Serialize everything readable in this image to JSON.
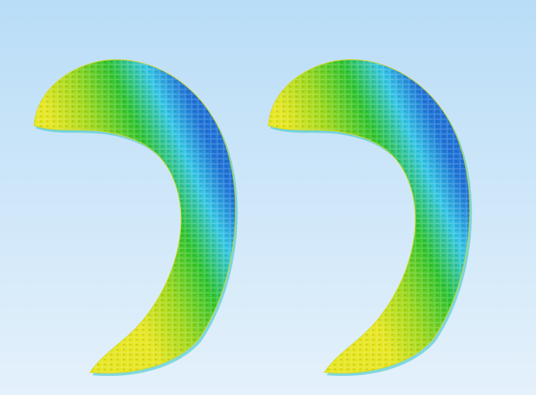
{
  "scene": {
    "background": {
      "top_color": "#b9ddf7",
      "bottom_color": "#e4f1fb"
    },
    "colormap": {
      "low": "#1f72d6",
      "low_mid": "#35c6e6",
      "mid": "#2fc42f",
      "high_mid": "#9dd81b",
      "high": "#e6e620"
    },
    "models": [
      {
        "id": "left",
        "shape": "crescent-mesh"
      },
      {
        "id": "right",
        "shape": "crescent-mesh"
      }
    ]
  }
}
